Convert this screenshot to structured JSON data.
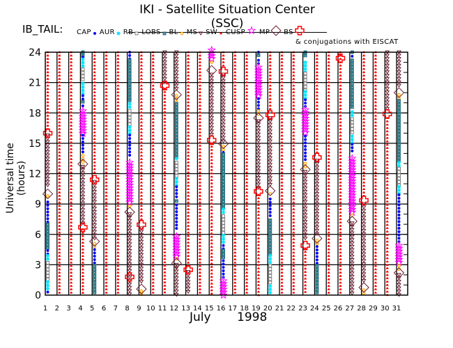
{
  "header": {
    "title": "IKI - Satellite Situation Center (SSC)",
    "satellite": "IB_TAIL:",
    "conjugations_note": "& conjugations with EISCAT"
  },
  "legend": [
    {
      "code": "CAP",
      "label": "CAP",
      "symbol": "filled-circle",
      "color": "#0000ff"
    },
    {
      "code": "AUR",
      "label": "AUR",
      "symbol": "asterisk",
      "color": "#00e5ff"
    },
    {
      "code": "RB",
      "label": "RB",
      "symbol": "hollow-square",
      "color": "#808080"
    },
    {
      "code": "LOBS",
      "label": "LOBS",
      "symbol": "filled-square",
      "color": "#2f7886"
    },
    {
      "code": "BL",
      "label": "BL",
      "symbol": "sun",
      "color": "#ffa500"
    },
    {
      "code": "MS",
      "label": "MS",
      "symbol": "down-triangle",
      "color": "#6b1f30"
    },
    {
      "code": "SW",
      "label": "SW",
      "symbol": "spade",
      "color": "#ff0000"
    },
    {
      "code": "CUSP",
      "label": "CUSP",
      "symbol": "star",
      "color": "#ff00ff"
    },
    {
      "code": "MP",
      "label": "MP",
      "symbol": "diamond",
      "color": "#6b1f30"
    },
    {
      "code": "BS",
      "label": "BS",
      "symbol": "cross",
      "color": "#ff0000"
    }
  ],
  "chart_data": {
    "type": "scatter",
    "title": "IKI - Satellite Situation Center (SSC)",
    "xlabel_month": "July",
    "xlabel_year": "1998",
    "ylabel": "Universal time (hours)",
    "xlim": [
      1,
      32
    ],
    "ylim": [
      0,
      24
    ],
    "x_ticks": [
      "1",
      "2",
      "3",
      "4",
      "5",
      "6",
      "7",
      "8",
      "9",
      "10",
      "11",
      "12",
      "13",
      "14",
      "15",
      "16",
      "17",
      "18",
      "19",
      "20",
      "21",
      "22",
      "23",
      "24",
      "25",
      "26",
      "27",
      "28",
      "29",
      "30",
      "31"
    ],
    "y_ticks": [
      "0",
      "3",
      "6",
      "9",
      "12",
      "15",
      "18",
      "21",
      "24"
    ],
    "grid": true,
    "days": [
      {
        "day": 1,
        "segments": [
          [
            24,
            16.3,
            "SW"
          ],
          [
            15.8,
            10.6,
            "MS"
          ],
          [
            9.8,
            9.5,
            "BL"
          ],
          [
            9.2,
            7.1,
            "CAP"
          ],
          [
            7.0,
            4.6,
            "LOBS"
          ],
          [
            4.4,
            4.0,
            "CAP"
          ],
          [
            3.9,
            3.3,
            "AUR"
          ],
          [
            3.2,
            1.4,
            "RB"
          ],
          [
            1.3,
            0.4,
            "AUR"
          ],
          [
            0.3,
            0,
            "CAP"
          ]
        ],
        "events": [
          [
            16.0,
            "BS"
          ],
          [
            10.0,
            "MP"
          ]
        ]
      },
      {
        "day": 2,
        "segments": [
          [
            24,
            0,
            "SW"
          ]
        ],
        "events": []
      },
      {
        "day": 3,
        "segments": [
          [
            24,
            0,
            "SW"
          ]
        ],
        "events": []
      },
      {
        "day": 4,
        "segments": [
          [
            24,
            23.6,
            "LOBS"
          ],
          [
            23.5,
            23.4,
            "CAP"
          ],
          [
            23.3,
            22.5,
            "AUR"
          ],
          [
            22.3,
            21.0,
            "RB"
          ],
          [
            20.9,
            19.9,
            "AUR"
          ],
          [
            19.7,
            19.2,
            "CAP"
          ],
          [
            19.1,
            18.9,
            "LOBS"
          ],
          [
            18.7,
            18.4,
            "CAP"
          ],
          [
            18.2,
            15.9,
            "CUSP"
          ],
          [
            15.8,
            14.0,
            "CAP"
          ],
          [
            13.8,
            13.0,
            "BL"
          ],
          [
            12.7,
            7.0,
            "MS"
          ],
          [
            6.5,
            0,
            "SW"
          ]
        ],
        "events": [
          [
            12.95,
            "MP"
          ],
          [
            6.7,
            "BS"
          ]
        ]
      },
      {
        "day": 5,
        "segments": [
          [
            24,
            11.8,
            "SW"
          ],
          [
            11.2,
            5.5,
            "MS"
          ],
          [
            5.1,
            4.7,
            "BL"
          ],
          [
            4.5,
            3.0,
            "CAP"
          ],
          [
            2.9,
            0,
            "LOBS"
          ]
        ],
        "events": [
          [
            11.4,
            "BS"
          ],
          [
            5.3,
            "MP"
          ]
        ]
      },
      {
        "day": 6,
        "segments": [
          [
            24,
            0,
            "SW"
          ]
        ],
        "events": []
      },
      {
        "day": 7,
        "segments": [
          [
            24,
            0,
            "SW"
          ]
        ],
        "events": []
      },
      {
        "day": 8,
        "segments": [
          [
            24,
            23.3,
            "CAP"
          ],
          [
            23.2,
            19.0,
            "LOBS"
          ],
          [
            18.9,
            18.3,
            "AUR"
          ],
          [
            18.2,
            16.8,
            "RB"
          ],
          [
            16.6,
            15.9,
            "AUR"
          ],
          [
            15.8,
            13.7,
            "CAP"
          ],
          [
            13.1,
            9.0,
            "CUSP"
          ],
          [
            8.8,
            8.5,
            "BL"
          ],
          [
            8.0,
            0,
            "MS"
          ]
        ],
        "events": [
          [
            8.2,
            "MP"
          ],
          [
            1.8,
            "BS"
          ]
        ]
      },
      {
        "day": 9,
        "segments": [
          [
            24,
            7.2,
            "SW"
          ],
          [
            6.6,
            1.3,
            "MS"
          ],
          [
            0.4,
            0,
            "BL"
          ]
        ],
        "events": [
          [
            6.95,
            "BS"
          ],
          [
            0.6,
            "MP"
          ]
        ]
      },
      {
        "day": 10,
        "segments": [
          [
            24,
            0,
            "SW"
          ]
        ],
        "events": []
      },
      {
        "day": 11,
        "segments": [
          [
            24,
            21.0,
            "MS"
          ],
          [
            20.4,
            0,
            "SW"
          ]
        ],
        "events": [
          [
            20.7,
            "BS"
          ]
        ]
      },
      {
        "day": 12,
        "segments": [
          [
            24,
            20.2,
            "MS"
          ],
          [
            19.7,
            19.0,
            "BL"
          ],
          [
            18.9,
            13.6,
            "LOBS"
          ],
          [
            13.5,
            13.2,
            "AUR"
          ],
          [
            13.1,
            11.6,
            "RB"
          ],
          [
            11.5,
            10.8,
            "AUR"
          ],
          [
            10.7,
            9.4,
            "CAP"
          ],
          [
            9.3,
            9.0,
            "LOBS"
          ],
          [
            8.9,
            6.3,
            "CAP"
          ],
          [
            5.8,
            3.7,
            "CUSP"
          ],
          [
            3.6,
            3.4,
            "BL"
          ],
          [
            3.0,
            0,
            "MS"
          ]
        ],
        "events": [
          [
            19.8,
            "MP"
          ],
          [
            3.15,
            "MP"
          ]
        ]
      },
      {
        "day": 13,
        "segments": [
          [
            24,
            2.8,
            "SW"
          ],
          [
            2.3,
            0,
            "MS"
          ]
        ],
        "events": [
          [
            2.5,
            "BS"
          ]
        ]
      },
      {
        "day": 14,
        "segments": [
          [
            24,
            0,
            "SW"
          ]
        ],
        "events": []
      },
      {
        "day": 15,
        "segments": [
          [
            24.2,
            23.2,
            "CUSP"
          ],
          [
            23.0,
            22.8,
            "BL"
          ],
          [
            21.8,
            15.6,
            "MS"
          ],
          [
            15.0,
            0,
            "SW"
          ]
        ],
        "events": [
          [
            22.2,
            "MP"
          ],
          [
            15.3,
            "BS"
          ]
        ]
      },
      {
        "day": 16,
        "segments": [
          [
            24,
            22.6,
            "SW"
          ],
          [
            21.8,
            15.2,
            "MS"
          ],
          [
            14.7,
            14.3,
            "BL"
          ],
          [
            14.1,
            14.0,
            "CAP"
          ],
          [
            13.9,
            8.6,
            "LOBS"
          ],
          [
            8.5,
            7.9,
            "AUR"
          ],
          [
            7.8,
            6.0,
            "RB"
          ],
          [
            5.9,
            5.0,
            "AUR"
          ],
          [
            4.9,
            4.5,
            "CAP"
          ],
          [
            4.4,
            3.5,
            "LOBS"
          ],
          [
            3.4,
            1.5,
            "CAP"
          ],
          [
            1.4,
            -0.2,
            "CUSP"
          ]
        ],
        "events": [
          [
            22.1,
            "BS"
          ],
          [
            14.95,
            "MP"
          ]
        ]
      },
      {
        "day": 17,
        "segments": [
          [
            24,
            0,
            "SW"
          ]
        ],
        "events": []
      },
      {
        "day": 18,
        "segments": [
          [
            24,
            0,
            "SW"
          ]
        ],
        "events": []
      },
      {
        "day": 19,
        "segments": [
          [
            24,
            23.8,
            "CAP"
          ],
          [
            23.7,
            23.4,
            "LOBS"
          ],
          [
            23.2,
            22.8,
            "CAP"
          ],
          [
            22.5,
            19.5,
            "CUSP"
          ],
          [
            19.4,
            18.3,
            "CAP"
          ],
          [
            18.2,
            17.7,
            "BL"
          ],
          [
            17.2,
            10.6,
            "MS"
          ],
          [
            9.9,
            0,
            "SW"
          ]
        ],
        "events": [
          [
            17.5,
            "MP"
          ],
          [
            10.25,
            "BS"
          ]
        ]
      },
      {
        "day": 20,
        "segments": [
          [
            24,
            18.3,
            "SW"
          ],
          [
            17.5,
            10.8,
            "MS"
          ],
          [
            10.0,
            9.7,
            "BL"
          ],
          [
            9.5,
            7.7,
            "CAP"
          ],
          [
            7.4,
            4.0,
            "LOBS"
          ],
          [
            3.9,
            3.0,
            "AUR"
          ],
          [
            2.9,
            1.0,
            "RB"
          ],
          [
            0.9,
            0,
            "AUR"
          ]
        ],
        "events": [
          [
            17.8,
            "BS"
          ],
          [
            10.3,
            "MP"
          ]
        ]
      },
      {
        "day": 21,
        "segments": [
          [
            24,
            0,
            "SW"
          ]
        ],
        "events": []
      },
      {
        "day": 22,
        "segments": [
          [
            24,
            0,
            "SW"
          ]
        ],
        "events": []
      },
      {
        "day": 23,
        "segments": [
          [
            24,
            23.4,
            "LOBS"
          ],
          [
            23.0,
            22.0,
            "AUR"
          ],
          [
            21.9,
            20.2,
            "RB"
          ],
          [
            20.1,
            19.4,
            "AUR"
          ],
          [
            19.3,
            18.6,
            "CAP"
          ],
          [
            18.3,
            15.8,
            "CUSP"
          ],
          [
            15.7,
            13.1,
            "CAP"
          ],
          [
            13.0,
            12.6,
            "BL"
          ],
          [
            12.2,
            5.3,
            "MS"
          ],
          [
            4.6,
            0,
            "SW"
          ]
        ],
        "events": [
          [
            12.4,
            "MP"
          ],
          [
            4.9,
            "BS"
          ]
        ]
      },
      {
        "day": 24,
        "segments": [
          [
            24,
            14.1,
            "SW"
          ],
          [
            13.3,
            5.8,
            "MS"
          ],
          [
            5.4,
            5.0,
            "BL"
          ],
          [
            4.8,
            3.0,
            "CAP"
          ],
          [
            2.9,
            0,
            "LOBS"
          ]
        ],
        "events": [
          [
            13.6,
            "BS"
          ],
          [
            5.6,
            "MP"
          ]
        ]
      },
      {
        "day": 25,
        "segments": [
          [
            24,
            0,
            "SW"
          ]
        ],
        "events": []
      },
      {
        "day": 26,
        "segments": [
          [
            24,
            0,
            "SW"
          ]
        ],
        "events": [
          [
            23.4,
            "BS"
          ]
        ]
      },
      {
        "day": 27,
        "segments": [
          [
            24,
            23.7,
            "LOBS"
          ],
          [
            23.6,
            23.4,
            "CAP"
          ],
          [
            23.2,
            18.3,
            "LOBS"
          ],
          [
            18.1,
            17.5,
            "AUR"
          ],
          [
            17.4,
            15.8,
            "RB"
          ],
          [
            15.7,
            15.0,
            "AUR"
          ],
          [
            14.9,
            14.1,
            "CAP"
          ],
          [
            13.5,
            8.0,
            "CUSP"
          ],
          [
            7.9,
            7.6,
            "BL"
          ],
          [
            7.1,
            0,
            "MS"
          ]
        ],
        "events": [
          [
            7.3,
            "MP"
          ]
        ]
      },
      {
        "day": 28,
        "segments": [
          [
            24,
            9.6,
            "SW"
          ],
          [
            9.0,
            1.2,
            "MS"
          ],
          [
            0.5,
            0,
            "BL"
          ]
        ],
        "events": [
          [
            9.35,
            "BS"
          ],
          [
            0.75,
            "MP"
          ]
        ]
      },
      {
        "day": 29,
        "segments": [
          [
            24,
            0,
            "SW"
          ]
        ],
        "events": []
      },
      {
        "day": 30,
        "segments": [
          [
            24,
            18.3,
            "MS"
          ],
          [
            17.5,
            0,
            "SW"
          ]
        ],
        "events": [
          [
            17.9,
            "BS"
          ]
        ]
      },
      {
        "day": 31,
        "segments": [
          [
            24,
            20.7,
            "MS"
          ],
          [
            19.8,
            19.4,
            "BL"
          ],
          [
            19.2,
            13.2,
            "LOBS"
          ],
          [
            13.1,
            12.6,
            "AUR"
          ],
          [
            12.5,
            10.8,
            "RB"
          ],
          [
            10.7,
            10.0,
            "AUR"
          ],
          [
            9.9,
            5.0,
            "CAP"
          ],
          [
            4.9,
            3.0,
            "CUSP"
          ],
          [
            2.9,
            2.5,
            "BL"
          ],
          [
            2.0,
            0,
            "MS"
          ]
        ],
        "events": [
          [
            20.0,
            "MP"
          ],
          [
            2.2,
            "MP"
          ]
        ]
      }
    ]
  }
}
